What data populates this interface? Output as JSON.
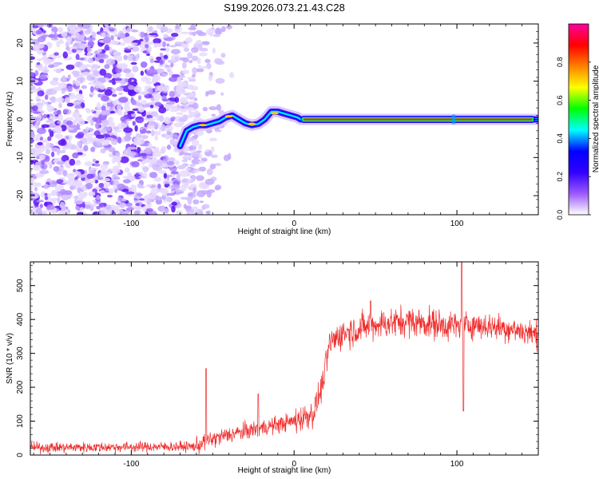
{
  "title": "S199.2026.073.21.43.C28",
  "colors": {
    "snr_line": "#ef2b2b",
    "frame": "#000000"
  },
  "chart_data": [
    {
      "type": "heatmap",
      "name": "spectrogram",
      "xlabel": "Height of straight line (km)",
      "ylabel": "Frequency (Hz)",
      "xlim": [
        -162,
        150
      ],
      "ylim": [
        -25,
        25
      ],
      "xticks": [
        -100,
        0,
        100
      ],
      "xtick_labels": [
        "-100",
        "0",
        "100"
      ],
      "yticks": [
        -20,
        -10,
        0,
        10,
        20
      ],
      "ytick_labels": [
        "-20",
        "-10",
        "0",
        "10",
        "20"
      ],
      "colorbar": {
        "label": "Normalized spectral amplitude",
        "range": [
          0,
          1
        ],
        "ticks": [
          0.0,
          0.2,
          0.4,
          0.6,
          0.8
        ],
        "tick_labels": [
          "0.0",
          "0.2",
          "0.4",
          "0.6",
          "0.8"
        ],
        "colormap": [
          "#ffffff",
          "#9b59ff",
          "#3200ff",
          "#0000ff",
          "#00ffff",
          "#00ff00",
          "#ffff00",
          "#ff8000",
          "#ff0000",
          "#ff00a0"
        ]
      },
      "noise_region_x": [
        -162,
        -45
      ],
      "track": {
        "x": [
          -70,
          -66,
          -62,
          -58,
          -54,
          -50,
          -46,
          -42,
          -38,
          -34,
          -30,
          -26,
          -22,
          -18,
          -14,
          -10,
          -6,
          -2,
          2,
          4,
          150
        ],
        "y": [
          -7,
          -3,
          -2,
          -1.5,
          -1.5,
          -1,
          -0.5,
          0.5,
          1,
          0,
          -1,
          -1.5,
          -1.2,
          0,
          2,
          2,
          1.5,
          1,
          0.5,
          0,
          0
        ],
        "strong_segment_x": [
          4,
          148
        ]
      }
    },
    {
      "type": "line",
      "name": "snr",
      "xlabel": "Height of straight line (km)",
      "ylabel": "SNR (10 * v/v)",
      "xlim": [
        -162,
        150
      ],
      "ylim": [
        0,
        570
      ],
      "xticks": [
        -100,
        0,
        100
      ],
      "xtick_labels": [
        "-100",
        "0",
        "100"
      ],
      "yticks": [
        0,
        100,
        200,
        300,
        400,
        500
      ],
      "ytick_labels": [
        "0",
        "100",
        "200",
        "300",
        "400",
        "500"
      ],
      "series": [
        {
          "name": "SNR",
          "trend_x": [
            -162,
            -60,
            -55,
            -40,
            -20,
            0,
            12,
            17,
            22,
            30,
            50,
            70,
            90,
            100,
            110,
            130,
            150
          ],
          "trend_y": [
            22,
            25,
            40,
            60,
            80,
            100,
            125,
            200,
            330,
            360,
            385,
            395,
            385,
            380,
            385,
            375,
            355
          ],
          "noise_amplitude": [
            15,
            25,
            40,
            45,
            40
          ],
          "spikes": [
            {
              "x": -54,
              "y": 255
            },
            {
              "x": 103,
              "y": 570
            },
            {
              "x": 104,
              "y": 130
            },
            {
              "x": 47,
              "y": 455
            },
            {
              "x": -22,
              "y": 180
            }
          ]
        }
      ]
    }
  ]
}
